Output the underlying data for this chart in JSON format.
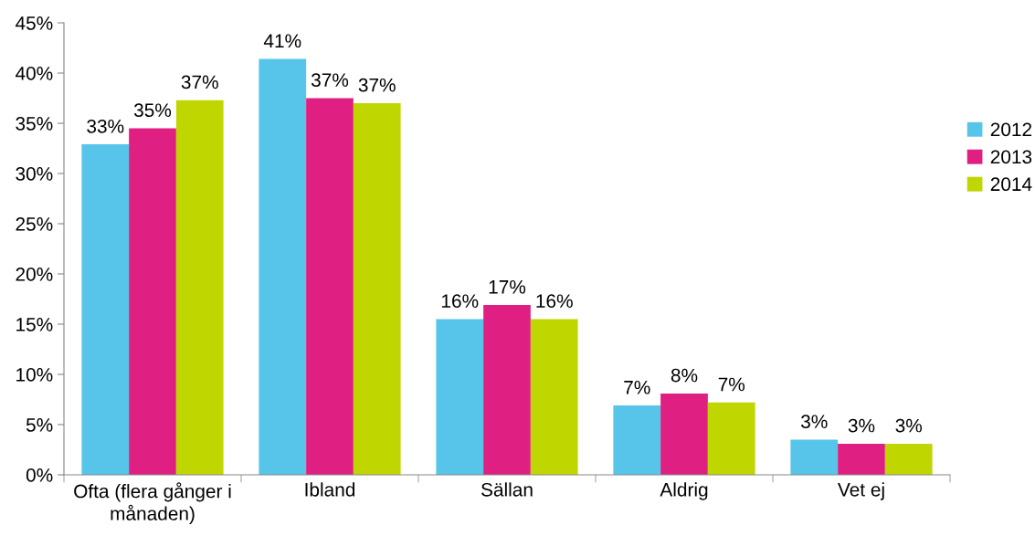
{
  "chart_data": {
    "type": "bar",
    "categories": [
      "Ofta (flera gånger i\nmånaden)",
      "Ibland",
      "Sällan",
      "Aldrig",
      "Vet ej"
    ],
    "series": [
      {
        "name": "2012",
        "color": "#56c5e9",
        "values": [
          32.9,
          41.4,
          15.5,
          6.9,
          3.5
        ],
        "value_labels": [
          "33%",
          "41%",
          "16%",
          "7%",
          "3%"
        ]
      },
      {
        "name": "2013",
        "color": "#e01f82",
        "values": [
          34.5,
          37.5,
          16.9,
          8.1,
          3.1
        ],
        "value_labels": [
          "35%",
          "37%",
          "17%",
          "8%",
          "3%"
        ]
      },
      {
        "name": "2014",
        "color": "#bfd600",
        "values": [
          37.3,
          37.0,
          15.5,
          7.2,
          3.1
        ],
        "value_labels": [
          "37%",
          "37%",
          "16%",
          "7%",
          "3%"
        ]
      }
    ],
    "ylim": [
      0,
      45
    ],
    "yticks": [
      {
        "value": 0,
        "label": "0%"
      },
      {
        "value": 5,
        "label": "5%"
      },
      {
        "value": 10,
        "label": "10%"
      },
      {
        "value": 15,
        "label": "15%"
      },
      {
        "value": 20,
        "label": "20%"
      },
      {
        "value": 25,
        "label": "25%"
      },
      {
        "value": 30,
        "label": "30%"
      },
      {
        "value": 35,
        "label": "35%"
      },
      {
        "value": 40,
        "label": "40%"
      },
      {
        "value": 45,
        "label": "45%"
      }
    ],
    "grid": false,
    "legend": "right"
  }
}
